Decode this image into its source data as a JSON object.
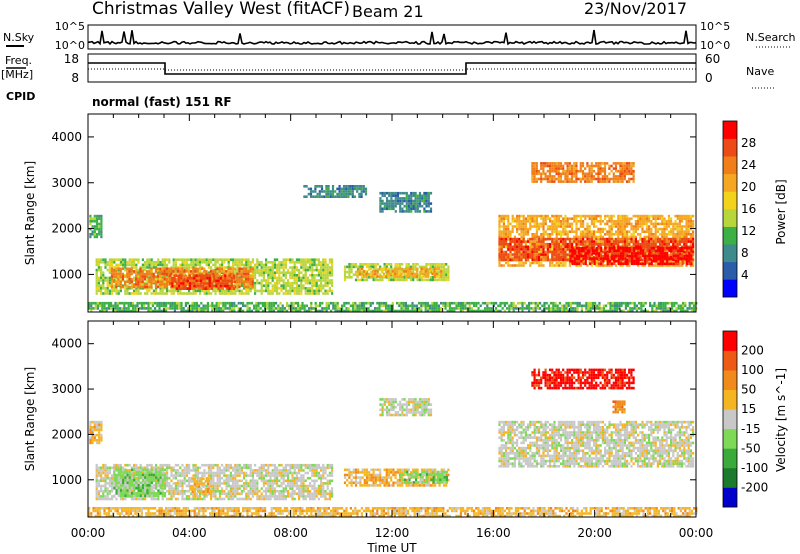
{
  "header": {
    "station": "Christmas Valley West (fitACF)",
    "beam": "Beam 21",
    "date": "23/Nov/2017"
  },
  "aux": {
    "nsky_label": "N.Sky",
    "nsearch_label": "N.Search",
    "nsky_ticks": [
      "10^5",
      "10^0"
    ],
    "nsearch_ticks": [
      "10^5",
      "10^0"
    ],
    "freq_label": [
      "Freq.",
      "[MHz]"
    ],
    "freq_ticks": [
      "18",
      "8"
    ],
    "nave_label": "Nave",
    "nave_ticks": [
      "60",
      "0"
    ],
    "cpid_label": "CPID",
    "cpid_value": "normal (fast) 151 RF"
  },
  "chart_data": [
    {
      "type": "heatmap",
      "title": "",
      "ylabel": "Slant Range [km]",
      "xlabel": "",
      "ylim": [
        180,
        4500
      ],
      "y_ticks": [
        "4000",
        "3000",
        "2000",
        "1000"
      ],
      "x_ticks": [
        "00:00",
        "04:00",
        "08:00",
        "12:00",
        "16:00",
        "20:00",
        "00:00"
      ],
      "colorbar": {
        "label": "Power [dB]",
        "ticks": [
          "28",
          "24",
          "20",
          "16",
          "12",
          "8",
          "4"
        ],
        "colors": [
          "#0000ff",
          "#2a5caa",
          "#3f8a8a",
          "#3cb044",
          "#b7d63c",
          "#f2d21b",
          "#f5a623",
          "#f07f1a",
          "#ec4a16",
          "#ff0000"
        ]
      },
      "regions": [
        {
          "t": [
            0.05,
            0.5
          ],
          "r": [
            1800,
            2300
          ],
          "level": 3
        },
        {
          "t": [
            0.3,
            9.6
          ],
          "r": [
            600,
            1350
          ],
          "level": 4
        },
        {
          "t": [
            0.9,
            6.5
          ],
          "r": [
            750,
            1150
          ],
          "level": 7
        },
        {
          "t": [
            3.2,
            5.8
          ],
          "r": [
            700,
            1000
          ],
          "level": 8
        },
        {
          "t": [
            10.1,
            14.2
          ],
          "r": [
            900,
            1250
          ],
          "level": 4
        },
        {
          "t": [
            10.6,
            13.9
          ],
          "r": [
            950,
            1150
          ],
          "level": 6
        },
        {
          "t": [
            0.0,
            24.0
          ],
          "r": [
            200,
            400
          ],
          "level": 3
        },
        {
          "t": [
            8.5,
            11.0
          ],
          "r": [
            2700,
            2950
          ],
          "level": 2
        },
        {
          "t": [
            11.5,
            13.5
          ],
          "r": [
            2400,
            2800
          ],
          "level": 2
        },
        {
          "t": [
            16.2,
            23.9
          ],
          "r": [
            1200,
            2300
          ],
          "level": 6
        },
        {
          "t": [
            16.2,
            23.9
          ],
          "r": [
            1300,
            1800
          ],
          "level": 8
        },
        {
          "t": [
            19.0,
            23.8
          ],
          "r": [
            1250,
            1600
          ],
          "level": 9
        },
        {
          "t": [
            17.5,
            21.5
          ],
          "r": [
            3000,
            3450
          ],
          "level": 7
        }
      ]
    },
    {
      "type": "heatmap",
      "title": "",
      "ylabel": "Slant Range [km]",
      "xlabel": "Time UT",
      "ylim": [
        180,
        4500
      ],
      "y_ticks": [
        "4000",
        "3000",
        "2000",
        "1000"
      ],
      "x_ticks": [
        "00:00",
        "04:00",
        "08:00",
        "12:00",
        "16:00",
        "20:00",
        "00:00"
      ],
      "colorbar": {
        "label": "Velocity [m s^-1]",
        "ticks": [
          "200",
          "100",
          "50",
          "15",
          "-15",
          "-50",
          "-100",
          "-200"
        ],
        "colors": [
          "#0000cc",
          "#1c7a2c",
          "#3aaa3a",
          "#7ed957",
          "#c8c8c8",
          "#f5b523",
          "#f08a1a",
          "#ec5a16",
          "#ff0000"
        ]
      },
      "regions": [
        {
          "t": [
            0.05,
            0.5
          ],
          "r": [
            1800,
            2300
          ],
          "level": 5
        },
        {
          "t": [
            0.3,
            9.6
          ],
          "r": [
            600,
            1350
          ],
          "level": 4
        },
        {
          "t": [
            1.0,
            3.0
          ],
          "r": [
            650,
            1250
          ],
          "level": 3
        },
        {
          "t": [
            4.0,
            4.7
          ],
          "r": [
            650,
            1050
          ],
          "level": 5
        },
        {
          "t": [
            10.1,
            14.2
          ],
          "r": [
            850,
            1250
          ],
          "level": 5
        },
        {
          "t": [
            12.3,
            14.2
          ],
          "r": [
            950,
            1200
          ],
          "level": 3
        },
        {
          "t": [
            0.0,
            24.0
          ],
          "r": [
            200,
            400
          ],
          "level": 5
        },
        {
          "t": [
            11.5,
            13.5
          ],
          "r": [
            2400,
            2800
          ],
          "level": 4
        },
        {
          "t": [
            16.2,
            23.9
          ],
          "r": [
            1300,
            2300
          ],
          "level": 4
        },
        {
          "t": [
            17.5,
            21.5
          ],
          "r": [
            3000,
            3450
          ],
          "level": 8
        },
        {
          "t": [
            20.7,
            21.2
          ],
          "r": [
            2500,
            2750
          ],
          "level": 6
        }
      ]
    }
  ]
}
